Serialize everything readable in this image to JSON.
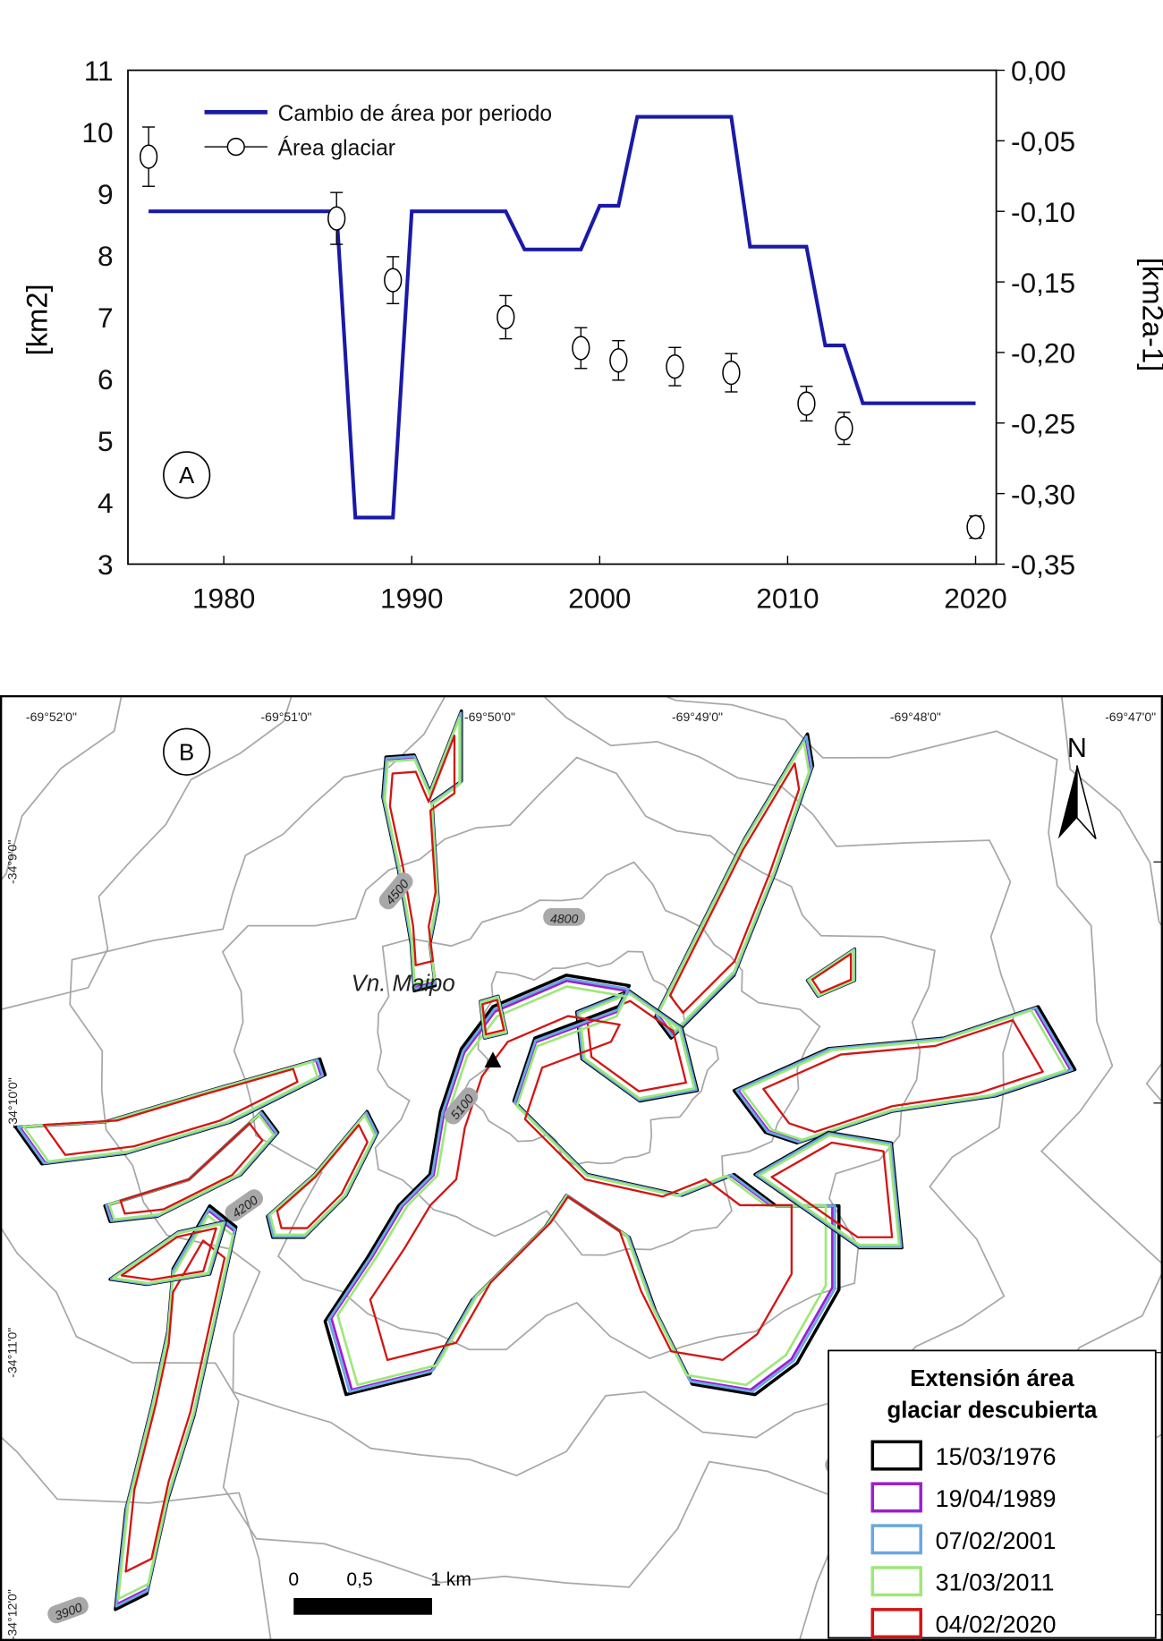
{
  "chart_data": {
    "type": "line",
    "panel_label": "A",
    "x_ticks": [
      "1980",
      "1990",
      "2000",
      "2010",
      "2020"
    ],
    "xlim": [
      1974.9,
      2021.1
    ],
    "ylabel_left": "[km2]",
    "ylabel_right": "[km2a-1]",
    "ylim_left": [
      3,
      11
    ],
    "ylim_right": [
      -0.35,
      0.0
    ],
    "y_ticks_left": [
      "3",
      "4",
      "5",
      "6",
      "7",
      "8",
      "9",
      "10",
      "11"
    ],
    "y_ticks_right": [
      "-0,35",
      "-0,30",
      "-0,25",
      "-0,20",
      "-0,15",
      "-0,10",
      "-0,05",
      "0,00"
    ],
    "legend": {
      "placement": "top-left",
      "entries": [
        "Cambio de área por periodo",
        "Área glaciar"
      ]
    },
    "series": [
      {
        "name": "Cambio de área por periodo",
        "axis": "right",
        "color": "#1a1aa8",
        "style": "step",
        "x": [
          1976,
          1986,
          1987,
          1989,
          1990,
          1995,
          1996,
          1999,
          2000,
          2001,
          2002,
          2007,
          2008,
          2011,
          2012,
          2013,
          2014,
          2020
        ],
        "y": [
          -0.1,
          -0.1,
          -0.317,
          -0.317,
          -0.1,
          -0.1,
          -0.127,
          -0.127,
          -0.096,
          -0.096,
          -0.033,
          -0.033,
          -0.125,
          -0.125,
          -0.195,
          -0.195,
          -0.236,
          -0.236
        ]
      },
      {
        "name": "Área glaciar",
        "axis": "left",
        "color": "#000000",
        "style": "scatter-errorbar",
        "x": [
          1976,
          1986,
          1989,
          1995,
          1999,
          2001,
          2004,
          2007,
          2011,
          2013,
          2020
        ],
        "y": [
          9.6,
          8.6,
          7.6,
          7.0,
          6.5,
          6.3,
          6.2,
          6.1,
          5.6,
          5.2,
          3.6
        ],
        "err": [
          0.48,
          0.42,
          0.38,
          0.35,
          0.33,
          0.32,
          0.31,
          0.31,
          0.28,
          0.26,
          0.18
        ]
      }
    ]
  },
  "map": {
    "panel_label": "B",
    "lon_labels": [
      "-69°52'0\"",
      "-69°51'0\"",
      "-69°50'0\"",
      "-69°49'0\"",
      "-69°48'0\"",
      "-69°47'0\""
    ],
    "lat_labels": [
      "-34°9'0\"",
      "-34°10'0\"",
      "-34°11'0\"",
      "-34°12'0\""
    ],
    "contour_labels": [
      "4500",
      "4800",
      "5100",
      "4200",
      "3900",
      "3900"
    ],
    "volcano_label": "Vn. Maipo",
    "north_label": "N",
    "scale": {
      "labels": [
        "0",
        "0,5",
        "1 km"
      ]
    },
    "legend": {
      "title_line1": "Extensión área",
      "title_line2": "glaciar descubierta",
      "entries": [
        {
          "label": "15/03/1976",
          "color": "#000000"
        },
        {
          "label": "19/04/1989",
          "color": "#9b1fd1"
        },
        {
          "label": "07/02/2001",
          "color": "#6aa8e0"
        },
        {
          "label": "31/03/2011",
          "color": "#9de87a"
        },
        {
          "label": "04/02/2020",
          "color": "#d41414"
        }
      ]
    }
  }
}
